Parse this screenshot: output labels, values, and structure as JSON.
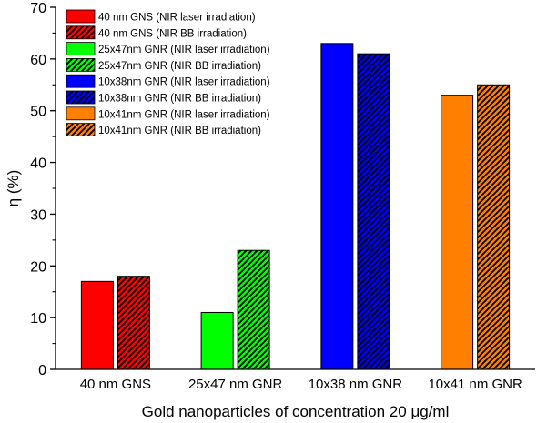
{
  "chart_data": {
    "type": "bar",
    "title": "",
    "xlabel": "Gold nanoparticles of concentration 20 μg/ml",
    "ylabel": "η (%)",
    "ylim": [
      0,
      70
    ],
    "yticks": [
      0,
      10,
      20,
      30,
      40,
      50,
      60,
      70
    ],
    "grid": false,
    "legend_position": "top-left",
    "categories": [
      "40 nm GNS",
      "25x47 nm GNR",
      "10x38 nm GNR",
      "10x41 nm GNR"
    ],
    "series": [
      {
        "name": "40 nm GNS (NIR laser irradiation)",
        "category": "40 nm GNS",
        "value": 17,
        "color": "#ff0000",
        "hatched": false
      },
      {
        "name": "40 nm GNS (NIR BB  irradiation)",
        "category": "40 nm GNS",
        "value": 18,
        "color": "#ff0000",
        "hatched": true
      },
      {
        "name": "25x47nm GNR (NIR laser irradiation)",
        "category": "25x47 nm GNR",
        "value": 11,
        "color": "#00ff00",
        "hatched": false
      },
      {
        "name": "25x47nm GNR (NIR BB irradiation)",
        "category": "25x47 nm GNR",
        "value": 23,
        "color": "#00ff00",
        "hatched": true
      },
      {
        "name": "10x38nm GNR (NIR laser irradiation)",
        "category": "10x38 nm GNR",
        "value": 63,
        "color": "#0000ff",
        "hatched": false
      },
      {
        "name": "10x38nm GNR (NIR BB irradiation)",
        "category": "10x38 nm GNR",
        "value": 61,
        "color": "#0000ff",
        "hatched": true
      },
      {
        "name": "10x41nm GNR (NIR laser irradiation)",
        "category": "10x41 nm GNR",
        "value": 53,
        "color": "#ff8000",
        "hatched": false
      },
      {
        "name": "10x41nm GNR (NIR BB irradiation)",
        "category": "10x41 nm GNR",
        "value": 55,
        "color": "#ff8000",
        "hatched": true
      }
    ]
  }
}
